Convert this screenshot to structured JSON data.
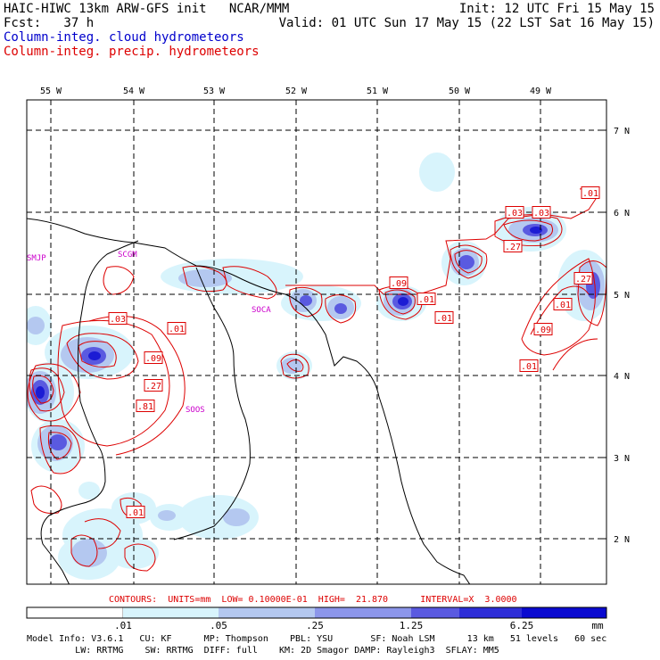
{
  "header": {
    "line1_left": "HAIC-HIWC 13km ARW-GFS init   NCAR/MMM",
    "line1_right": "Init: 12 UTC Fri 15 May 15",
    "line2_left": "Fcst:   37 h",
    "line2_right": "Valid: 01 UTC Sun 17 May 15 (22 LST Sat 16 May 15)",
    "legend_cloud": "Column-integ. cloud hydrometeors",
    "legend_precip": "Column-integ. precip. hydrometeors",
    "cloud_color": "#0000cc",
    "precip_color": "#dd0000"
  },
  "map": {
    "lon_labels": [
      "55 W",
      "54 W",
      "53 W",
      "52 W",
      "51 W",
      "50 W",
      "49 W"
    ],
    "lat_labels": [
      "7 N",
      "6 N",
      "5 N",
      "4 N",
      "3 N",
      "2 N"
    ],
    "stations": [
      "SMJP",
      "SCGM",
      "SOCA",
      "SOOS"
    ],
    "contour_labels": [
      ".01",
      ".03",
      ".27",
      ".03",
      ".01",
      ".09",
      ".01",
      ".01",
      ".03",
      ".01",
      ".09",
      ".27",
      ".81",
      ".09",
      ".27",
      ".01",
      ".01"
    ]
  },
  "contours_line": "CONTOURS:  UNITS=mm  LOW= 0.10000E-01  HIGH=  21.870      INTERVAL=X  3.0000",
  "colorbar": {
    "levels": [
      ".01",
      ".05",
      ".25",
      "1.25",
      "6.25"
    ],
    "unit": "mm",
    "colors": [
      "#ffffff",
      "#d8f4fc",
      "#b4c8f0",
      "#8c96ea",
      "#5a5ae0",
      "#2e2ed8",
      "#0a0ad0"
    ]
  },
  "model_info": {
    "line1": "Model Info: V3.6.1   CU: KF      MP: Thompson    PBL: YSU       SF: Noah LSM      13 km   51 levels   60 sec",
    "line2": "         LW: RRTMG    SW: RRTMG  DIFF: full    KM: 2D Smagor DAMP: Rayleigh3  SFLAY: MM5"
  }
}
